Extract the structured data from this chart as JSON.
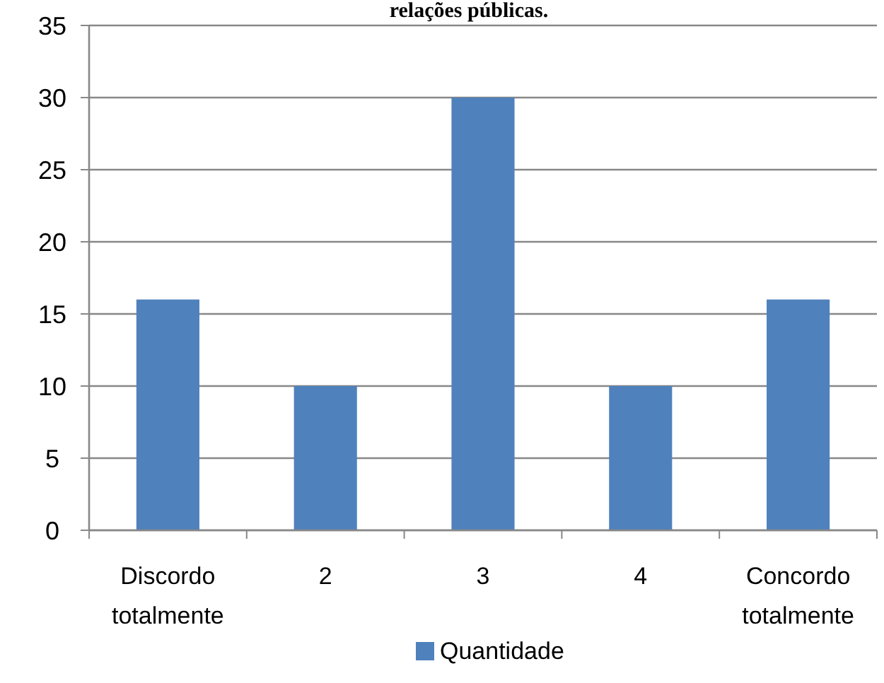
{
  "chart_data": {
    "type": "bar",
    "title": "relações públicas.",
    "categories": [
      "Discordo totalmente",
      "2",
      "3",
      "4",
      "Concordo totalmente"
    ],
    "series": [
      {
        "name": "Quantidade",
        "color": "#4f81bd",
        "values": [
          16,
          10,
          30,
          10,
          16
        ]
      }
    ],
    "ylim": [
      0,
      35
    ],
    "yticks": [
      0,
      5,
      10,
      15,
      20,
      25,
      30,
      35
    ],
    "grid": "y",
    "legend": "bottom"
  }
}
